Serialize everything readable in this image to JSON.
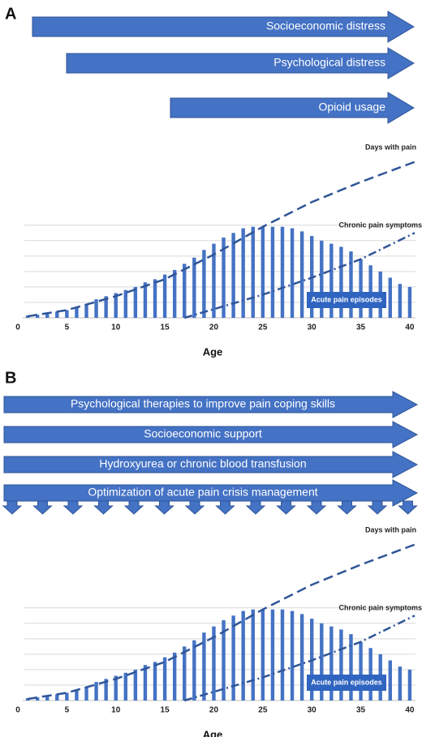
{
  "panels": [
    {
      "label": "A",
      "arrows": [
        "Socioeconomic distress",
        "Psychological distress",
        "Opioid usage"
      ]
    },
    {
      "label": "B",
      "arrows": [
        "Psychological therapies to improve pain coping skills",
        "Socioeconomic support",
        "Hydroxyurea or chronic blood transfusion",
        "Optimization of acute pain crisis management"
      ]
    }
  ],
  "chart_data": [
    {
      "type": "bar",
      "x_label": "Age",
      "x": [
        1,
        2,
        3,
        4,
        5,
        6,
        7,
        8,
        9,
        10,
        11,
        12,
        13,
        14,
        15,
        16,
        17,
        18,
        19,
        20,
        21,
        22,
        23,
        24,
        25,
        26,
        27,
        28,
        29,
        30,
        31,
        32,
        33,
        34,
        35,
        36,
        37,
        38,
        39,
        40
      ],
      "values": [
        0.15,
        0.2,
        0.3,
        0.4,
        0.5,
        0.7,
        0.9,
        1.2,
        1.4,
        1.6,
        1.8,
        2.0,
        2.3,
        2.5,
        2.8,
        3.1,
        3.5,
        3.9,
        4.4,
        4.8,
        5.2,
        5.5,
        5.8,
        5.9,
        5.9,
        5.9,
        5.9,
        5.8,
        5.6,
        5.3,
        5.0,
        4.8,
        4.6,
        4.3,
        3.8,
        3.4,
        3.0,
        2.6,
        2.2,
        2.0
      ],
      "color": "#4472c4",
      "bar_label": "Acute pain episodes",
      "lines": [
        {
          "name": "Days with pain",
          "style": "dashed",
          "color": "#2f5597",
          "x": [
            1,
            5,
            10,
            15,
            20,
            25,
            30,
            35,
            40.5
          ],
          "values": [
            0.1,
            0.5,
            1.4,
            2.5,
            4.1,
            5.9,
            7.5,
            8.8,
            10.1
          ]
        },
        {
          "name": "Chronic pain symptoms",
          "style": "dashdot",
          "color": "#2f5597",
          "x": [
            17,
            25,
            30,
            35,
            40.5
          ],
          "values": [
            0,
            1.5,
            2.6,
            3.8,
            5.5
          ]
        }
      ],
      "xlim": [
        0,
        41
      ],
      "xticks": [
        0,
        5,
        10,
        15,
        20,
        25,
        30,
        35,
        40
      ],
      "ylim": [
        0,
        10.4
      ],
      "ygrid": [
        1,
        2,
        3,
        4,
        5,
        6
      ]
    },
    {
      "type": "bar",
      "x_label": "Age",
      "x": [
        1,
        2,
        3,
        4,
        5,
        6,
        7,
        8,
        9,
        10,
        11,
        12,
        13,
        14,
        15,
        16,
        17,
        18,
        19,
        20,
        21,
        22,
        23,
        24,
        25,
        26,
        27,
        28,
        29,
        30,
        31,
        32,
        33,
        34,
        35,
        36,
        37,
        38,
        39,
        40
      ],
      "values": [
        0.15,
        0.2,
        0.3,
        0.4,
        0.5,
        0.7,
        0.9,
        1.2,
        1.4,
        1.6,
        1.8,
        2.0,
        2.3,
        2.5,
        2.8,
        3.1,
        3.5,
        3.9,
        4.4,
        4.8,
        5.2,
        5.5,
        5.8,
        5.9,
        5.9,
        5.9,
        5.9,
        5.8,
        5.6,
        5.3,
        5.0,
        4.8,
        4.6,
        4.3,
        3.8,
        3.4,
        3.0,
        2.6,
        2.2,
        2.0
      ],
      "color": "#4472c4",
      "bar_label": "Acute pain episodes",
      "lines": [
        {
          "name": "Days with pain",
          "style": "dashed",
          "color": "#2f5597",
          "x": [
            1,
            5,
            10,
            15,
            20,
            25,
            30,
            35,
            40.5
          ],
          "values": [
            0.1,
            0.5,
            1.4,
            2.5,
            4.1,
            5.9,
            7.5,
            8.8,
            10.1
          ]
        },
        {
          "name": "Chronic pain symptoms",
          "style": "dashdot",
          "color": "#2f5597",
          "x": [
            17,
            25,
            30,
            35,
            40.5
          ],
          "values": [
            0,
            1.5,
            2.6,
            3.8,
            5.5
          ]
        }
      ],
      "xlim": [
        0,
        41
      ],
      "xticks": [
        0,
        5,
        10,
        15,
        20,
        25,
        30,
        35,
        40
      ],
      "ylim": [
        0,
        10.4
      ],
      "ygrid": [
        1,
        2,
        3,
        4,
        5,
        6
      ]
    }
  ]
}
